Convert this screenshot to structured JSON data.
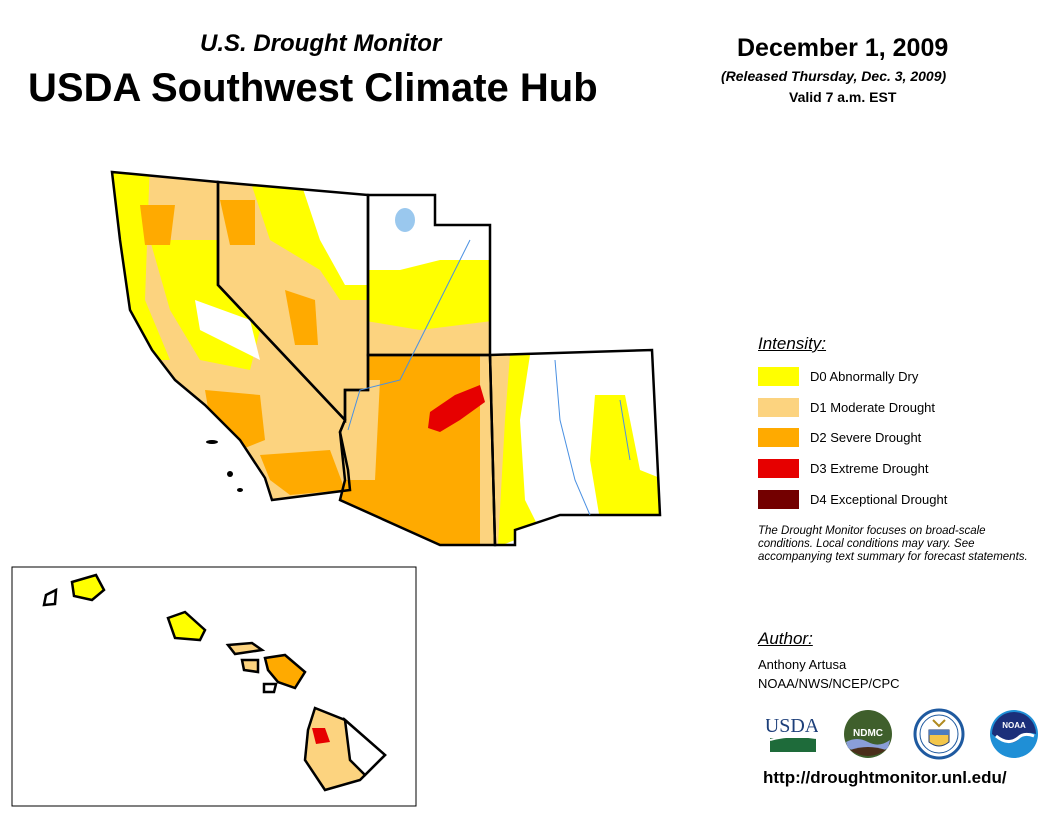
{
  "header": {
    "subtitle": "U.S. Drought Monitor",
    "title": "USDA Southwest Climate Hub",
    "date": "December 1, 2009",
    "released": "(Released Thursday, Dec. 3, 2009)",
    "valid": "Valid 7 a.m. EST"
  },
  "legend": {
    "heading": "Intensity:",
    "items": [
      {
        "label": "D0 Abnormally Dry",
        "color": "#FFFF00"
      },
      {
        "label": "D1 Moderate Drought",
        "color": "#FCD37F"
      },
      {
        "label": "D2 Severe Drought",
        "color": "#FFAA00"
      },
      {
        "label": "D3 Extreme Drought",
        "color": "#E60000"
      },
      {
        "label": "D4 Exceptional Drought",
        "color": "#730000"
      }
    ]
  },
  "note": "The Drought Monitor focuses on broad-scale conditions. Local conditions may vary. See accompanying text summary for forecast statements.",
  "author": {
    "heading": "Author:",
    "name": "Anthony Artusa",
    "org": "NOAA/NWS/NCEP/CPC"
  },
  "logos": {
    "usda": "USDA",
    "ndmc": "NDMC",
    "noaa": "NOAA"
  },
  "url": "http://droughtmonitor.unl.edu/"
}
